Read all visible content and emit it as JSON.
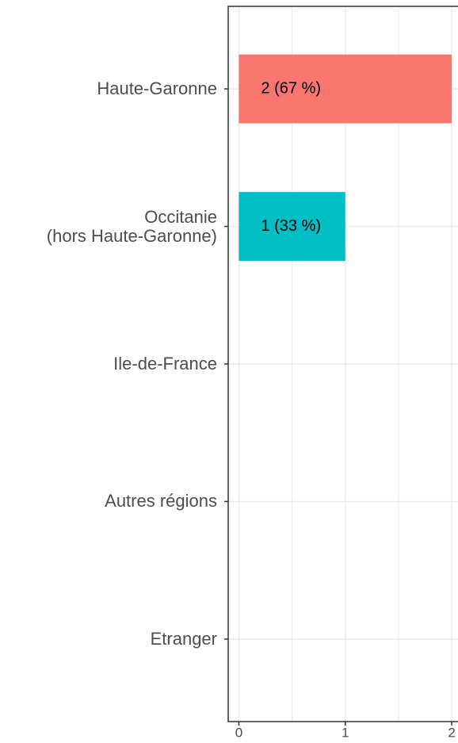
{
  "chart_data": {
    "type": "bar",
    "orientation": "horizontal",
    "categories": [
      "Haute-Garonne",
      "Occitanie\n(hors Haute-Garonne)",
      "Ile-de-France",
      "Autres régions",
      "Etranger"
    ],
    "values": [
      2,
      1,
      0,
      0,
      0
    ],
    "value_labels": [
      "2 (67 %)",
      "1 (33 %)",
      null,
      null,
      null
    ],
    "colors": [
      "#F8766D",
      "#00BFC4",
      null,
      null,
      null
    ],
    "xlim": [
      -0.1,
      2.1
    ],
    "xticks": [
      0,
      1,
      2
    ],
    "minor_xticks": [
      0.5,
      1.5
    ],
    "grid": true
  }
}
